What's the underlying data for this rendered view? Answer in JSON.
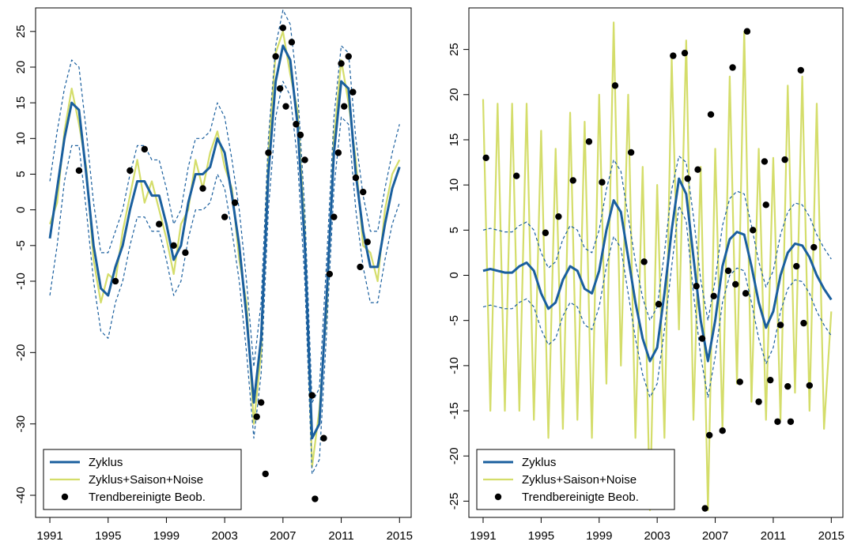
{
  "chart_data": [
    {
      "type": "line",
      "x": [
        1991,
        1991.5,
        1992,
        1992.5,
        1993,
        1993.5,
        1994,
        1994.5,
        1995,
        1995.5,
        1996,
        1996.5,
        1997,
        1997.5,
        1998,
        1998.5,
        1999,
        1999.5,
        2000,
        2000.5,
        2001,
        2001.5,
        2002,
        2002.5,
        2003,
        2003.5,
        2004,
        2004.5,
        2005,
        2005.5,
        2006,
        2006.5,
        2007,
        2007.5,
        2008,
        2008.5,
        2009,
        2009.5,
        2010,
        2010.5,
        2011,
        2011.5,
        2012,
        2012.5,
        2013,
        2013.5,
        2014,
        2014.5,
        2015
      ],
      "xlim": [
        1990.02,
        2015.8
      ],
      "xticks": [
        1991,
        1995,
        1999,
        2003,
        2007,
        2011,
        2015
      ],
      "ylim": [
        -43.1,
        28.3
      ],
      "yticks": [
        -40,
        -30,
        -20,
        -10,
        -5,
        0,
        5,
        10,
        15,
        20,
        25
      ],
      "legend": "bottom-left",
      "series": [
        {
          "name": "Zyklus+Saison+Noise",
          "color": "#d4dd6a",
          "style": "solid",
          "values": [
            -2,
            1,
            11,
            17,
            12,
            6,
            -7,
            -13,
            -9,
            -10,
            -3,
            2,
            7,
            1,
            4,
            0,
            -4,
            -9,
            -2,
            0,
            7,
            3,
            8,
            11,
            6,
            3,
            -7,
            -13,
            -30,
            -20,
            8,
            22,
            25,
            19,
            14,
            -3,
            -36,
            -28,
            -14,
            10,
            21,
            15,
            7,
            -5,
            -6,
            -10,
            0,
            5,
            7
          ]
        },
        {
          "color": "#1a5f9e",
          "style": "dashed",
          "values": [
            4,
            11,
            17,
            21,
            20,
            11,
            1,
            -6,
            -6,
            -3,
            0,
            5,
            9,
            9,
            7,
            7,
            3,
            -2,
            0,
            6,
            10,
            10,
            11,
            15,
            13,
            7,
            0,
            -10,
            -22,
            -13,
            10,
            23,
            28,
            26,
            17,
            0,
            -27,
            -25,
            -7,
            13,
            23,
            22,
            10,
            2,
            -3,
            -3,
            3,
            8,
            12
          ]
        },
        {
          "color": "#1a5f9e",
          "style": "dashed",
          "values": [
            -12,
            -5,
            4,
            9,
            9,
            0,
            -10,
            -17,
            -18,
            -13,
            -10,
            -5,
            -1,
            -1,
            -3,
            -3,
            -7,
            -12,
            -10,
            -4,
            0,
            0,
            1,
            5,
            3,
            -3,
            -10,
            -20,
            -32,
            -23,
            0,
            13,
            18,
            16,
            7,
            -10,
            -37,
            -35,
            -17,
            3,
            13,
            12,
            0,
            -8,
            -13,
            -13,
            -7,
            -2,
            1
          ]
        },
        {
          "name": "Zyklus",
          "color": "#1a5f9e",
          "style": "thick",
          "values": [
            -4,
            3,
            10,
            15,
            14,
            5,
            -5,
            -11,
            -12,
            -8,
            -5,
            0,
            4,
            4,
            2,
            2,
            -2,
            -7,
            -5,
            1,
            5,
            5,
            6,
            10,
            8,
            2,
            -5,
            -15,
            -27,
            -18,
            5,
            18,
            23,
            21,
            12,
            -5,
            -32,
            -30,
            -12,
            8,
            18,
            17,
            5,
            -3,
            -8,
            -8,
            -2,
            3,
            6
          ]
        },
        {
          "name": "Trendbereinigte Beob.",
          "color": "#000000",
          "style": "points",
          "x": [
            1993,
            1995.5,
            1996.5,
            1997.5,
            1998.5,
            1999.5,
            2000.3,
            2001.5,
            2003,
            2003.7,
            2005.2,
            2005.5,
            2005.8,
            2006,
            2006.5,
            2006.8,
            2007,
            2007.2,
            2007.6,
            2007.9,
            2008.2,
            2008.5,
            2009,
            2009.2,
            2009.8,
            2010.2,
            2010.5,
            2010.8,
            2011,
            2011.2,
            2011.5,
            2011.8,
            2012,
            2012.3,
            2012.5,
            2012.8
          ],
          "values": [
            5.5,
            -10,
            5.5,
            8.5,
            -2,
            -5,
            -6,
            3,
            -1,
            1,
            -29,
            -27,
            -37,
            8,
            21.5,
            17,
            25.5,
            14.5,
            23.5,
            12,
            10.5,
            7,
            -26,
            -40.5,
            -32,
            -9,
            -1,
            8,
            20.5,
            14.5,
            21.5,
            16.5,
            4.5,
            -8,
            2.5,
            -4.5
          ]
        }
      ]
    },
    {
      "type": "line",
      "x": [
        1991,
        1991.5,
        1992,
        1992.5,
        1993,
        1993.5,
        1994,
        1994.5,
        1995,
        1995.5,
        1996,
        1996.5,
        1997,
        1997.5,
        1998,
        1998.5,
        1999,
        1999.5,
        2000,
        2000.5,
        2001,
        2001.5,
        2002,
        2002.5,
        2003,
        2003.5,
        2004,
        2004.5,
        2005,
        2005.5,
        2006,
        2006.5,
        2007,
        2007.5,
        2008,
        2008.5,
        2009,
        2009.5,
        2010,
        2010.5,
        2011,
        2011.5,
        2012,
        2012.5,
        2013,
        2013.5,
        2014,
        2014.5,
        2015
      ],
      "xlim": [
        1990.02,
        2015.8
      ],
      "xticks": [
        1991,
        1995,
        1999,
        2003,
        2007,
        2011,
        2015
      ],
      "ylim": [
        -26.8,
        29.6
      ],
      "yticks": [
        -25,
        -20,
        -15,
        -10,
        -5,
        0,
        5,
        10,
        15,
        20,
        25
      ],
      "legend": "bottom-left",
      "series": [
        {
          "name": "Zyklus+Saison+Noise",
          "color": "#d4dd6a",
          "style": "solid",
          "values": [
            19.5,
            -15,
            19,
            -15,
            19,
            -15,
            19,
            -16,
            16,
            -18,
            14,
            -17,
            18,
            -16,
            17,
            -18,
            20,
            -12,
            28,
            -10,
            20,
            -18,
            12,
            -26,
            10,
            -18,
            24,
            -6,
            26,
            -16,
            12,
            -26,
            14,
            -17,
            22,
            -12,
            27,
            -14,
            14,
            -16,
            13,
            -16,
            21,
            -13,
            22,
            -15,
            19,
            -17,
            -4
          ]
        },
        {
          "color": "#1a5f9e",
          "style": "dashed",
          "values": [
            5,
            5.2,
            5,
            4.8,
            4.8,
            5.5,
            5.9,
            5,
            2.5,
            0.8,
            1.5,
            4,
            5.5,
            5,
            3,
            2.5,
            5,
            9.5,
            12.8,
            11.5,
            6.5,
            1.5,
            -2.5,
            -5,
            -3.5,
            2.5,
            9.5,
            13.2,
            12.5,
            6.5,
            -0.5,
            -5,
            -0.5,
            5.5,
            8.5,
            9.3,
            9,
            5.5,
            1.5,
            -1.3,
            0.5,
            4.5,
            7,
            8,
            7.8,
            6.5,
            4.5,
            3,
            1.8
          ]
        },
        {
          "color": "#1a5f9e",
          "style": "dashed",
          "values": [
            -3.5,
            -3.3,
            -3.5,
            -3.7,
            -3.7,
            -3,
            -2.6,
            -3.5,
            -6,
            -7.7,
            -7,
            -4.5,
            -3,
            -3.5,
            -5.5,
            -6,
            -3.5,
            1,
            4.3,
            3,
            -2,
            -7,
            -11,
            -13.5,
            -12,
            -6,
            1,
            7.7,
            6,
            -2,
            -9,
            -13.5,
            -9,
            -3,
            0,
            0.8,
            0.5,
            -3,
            -7,
            -9.8,
            -8,
            -4,
            -1.5,
            -0.5,
            -0.7,
            -2,
            -4,
            -5.5,
            -6.7
          ]
        },
        {
          "name": "Zyklus",
          "color": "#1a5f9e",
          "style": "thick",
          "values": [
            0.5,
            0.7,
            0.5,
            0.3,
            0.3,
            1,
            1.4,
            0.5,
            -2,
            -3.7,
            -3,
            -0.5,
            1,
            0.5,
            -1.5,
            -2,
            0.5,
            5,
            8.3,
            7,
            2,
            -3,
            -7,
            -9.5,
            -8,
            -2,
            5,
            10.7,
            9,
            2,
            -5,
            -9.5,
            -5,
            1,
            4,
            4.8,
            4.5,
            1,
            -3,
            -5.8,
            -4,
            0,
            2.5,
            3.5,
            3.3,
            2,
            0,
            -1.5,
            -2.7
          ]
        },
        {
          "name": "Trendbereinigte Beob.",
          "color": "#000000",
          "style": "points",
          "x": [
            1991.2,
            1993.3,
            1995.3,
            1996.2,
            1997.2,
            1998.3,
            1999.2,
            2000.1,
            2001.2,
            2002.1,
            2003.1,
            2004.1,
            2004.9,
            2005.1,
            2005.7,
            2005.8,
            2006.1,
            2006.3,
            2006.6,
            2006.7,
            2006.9,
            2007.5,
            2007.9,
            2008.2,
            2008.4,
            2008.7,
            2009.1,
            2009.2,
            2009.6,
            2010,
            2010.4,
            2010.5,
            2010.8,
            2011.3,
            2011.5,
            2011.8,
            2012,
            2012.2,
            2012.6,
            2012.9,
            2013.1,
            2013.5,
            2013.8
          ],
          "values": [
            13,
            11,
            4.7,
            6.5,
            10.5,
            14.8,
            10.3,
            21,
            13.6,
            1.5,
            -3.2,
            24.3,
            24.6,
            10.7,
            -1.2,
            11.7,
            -7,
            -25.8,
            -17.7,
            17.8,
            -2.3,
            -17.2,
            0.5,
            23,
            -1,
            -11.8,
            -2,
            27,
            5,
            -14,
            12.6,
            7.8,
            -11.6,
            -16.2,
            -5.5,
            12.8,
            -12.3,
            -16.2,
            1,
            22.7,
            -5.3,
            -12.2,
            3.1
          ]
        }
      ]
    }
  ]
}
